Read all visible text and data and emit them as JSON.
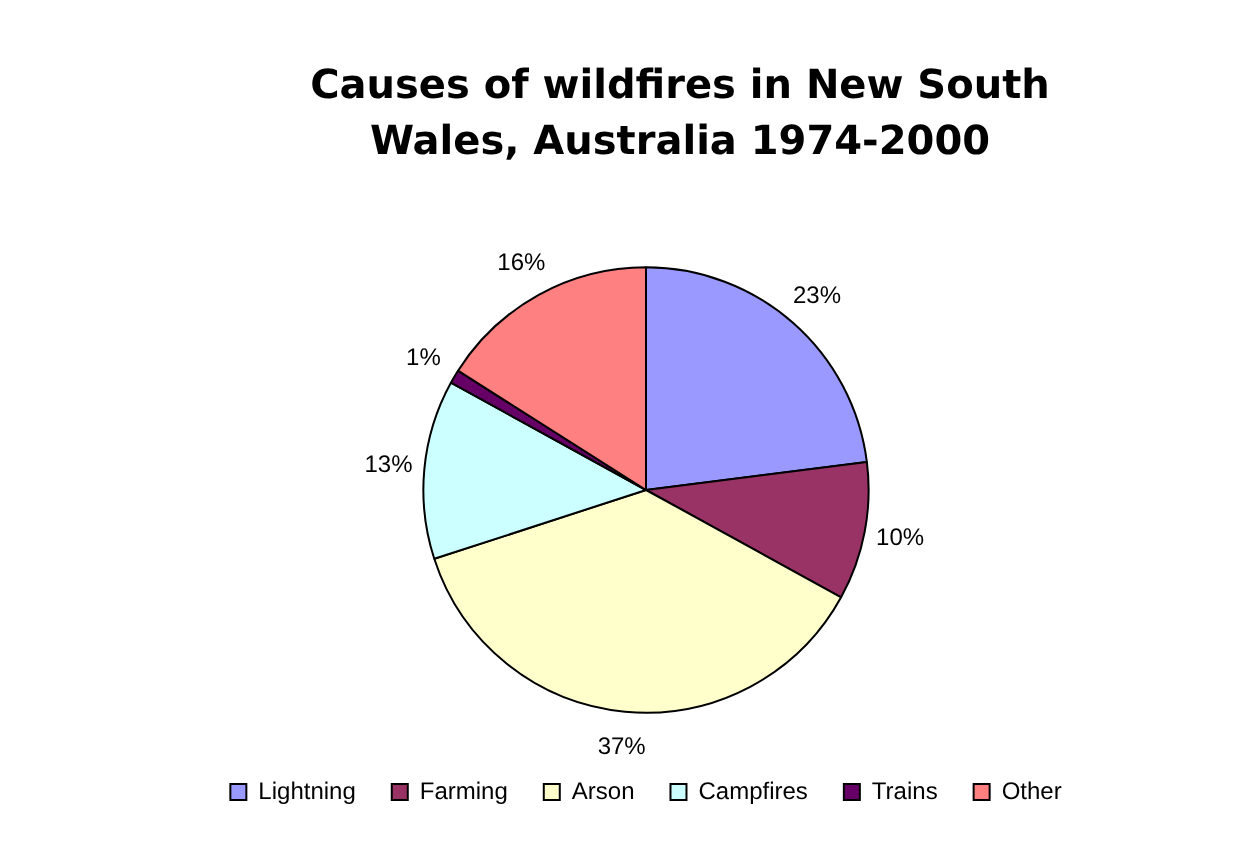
{
  "chart_data": {
    "type": "pie",
    "title": "Causes of wildfires in New South Wales, Australia 1974-2000",
    "categories": [
      "Lightning",
      "Farming",
      "Arson",
      "Campfires",
      "Trains",
      "Other"
    ],
    "values": [
      23,
      10,
      37,
      13,
      1,
      16
    ],
    "colors": [
      "#9999ff",
      "#993366",
      "#ffffcc",
      "#ccffff",
      "#660066",
      "#ff8080"
    ],
    "value_labels": [
      "23%",
      "10%",
      "37%",
      "13%",
      "1%",
      "16%"
    ],
    "legend": "bottom"
  }
}
